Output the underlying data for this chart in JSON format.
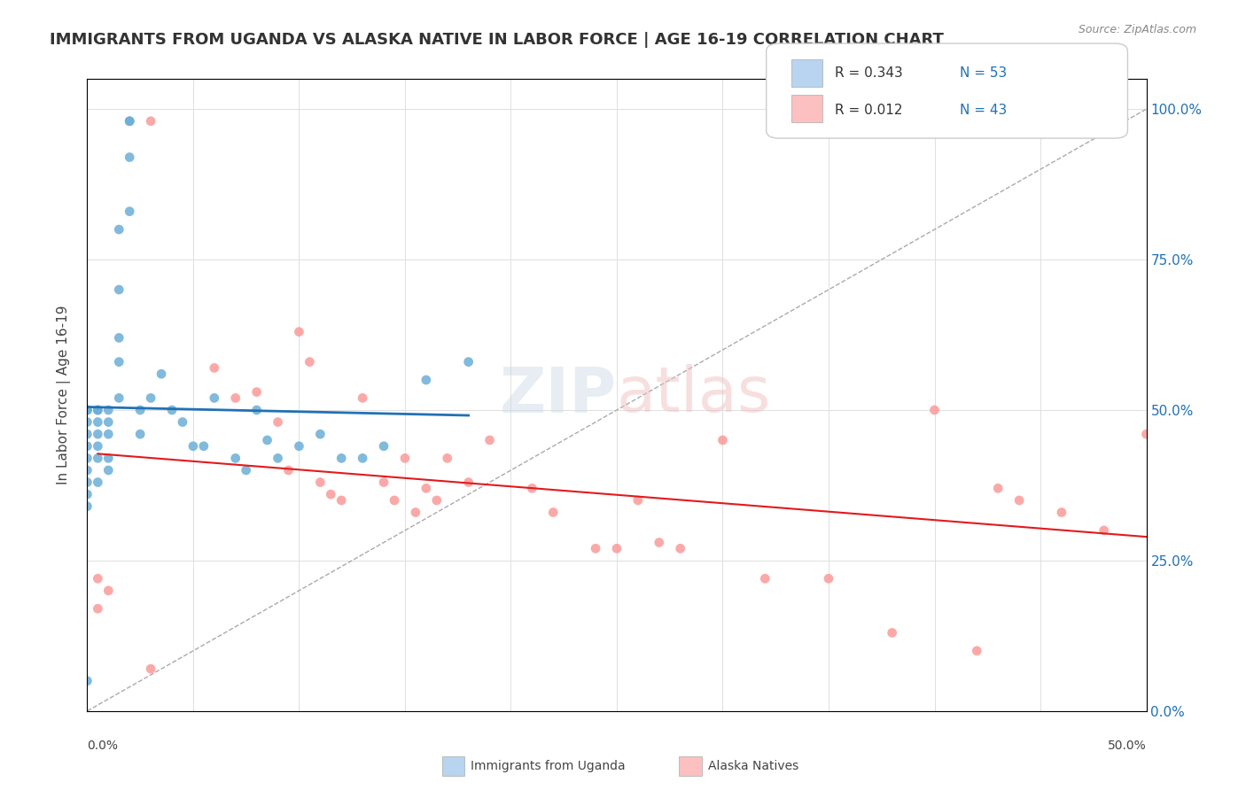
{
  "title": "IMMIGRANTS FROM UGANDA VS ALASKA NATIVE IN LABOR FORCE | AGE 16-19 CORRELATION CHART",
  "source": "Source: ZipAtlas.com",
  "ylabel": "In Labor Force | Age 16-19",
  "ylabel_right_ticks": [
    "0.0%",
    "25.0%",
    "50.0%",
    "75.0%",
    "100.0%"
  ],
  "ylabel_right_vals": [
    0.0,
    0.25,
    0.5,
    0.75,
    1.0
  ],
  "xmin": 0.0,
  "xmax": 0.5,
  "ymin": 0.0,
  "ymax": 1.05,
  "legend_r1": "R = 0.343",
  "legend_n1": "N = 53",
  "legend_r2": "R = 0.012",
  "legend_n2": "N = 43",
  "blue_color": "#6baed6",
  "pink_color": "#fb9a99",
  "blue_line_color": "#2171b5",
  "pink_line_color": "#e31a1c",
  "blue_scatter_x": [
    0.02,
    0.02,
    0.02,
    0.02,
    0.015,
    0.015,
    0.015,
    0.015,
    0.015,
    0.01,
    0.01,
    0.01,
    0.01,
    0.01,
    0.005,
    0.005,
    0.005,
    0.005,
    0.005,
    0.005,
    0.005,
    0.0,
    0.0,
    0.0,
    0.0,
    0.0,
    0.0,
    0.0,
    0.0,
    0.0,
    0.0,
    0.0,
    0.025,
    0.025,
    0.03,
    0.035,
    0.04,
    0.045,
    0.05,
    0.055,
    0.06,
    0.07,
    0.075,
    0.08,
    0.085,
    0.09,
    0.1,
    0.11,
    0.12,
    0.13,
    0.14,
    0.16,
    0.18
  ],
  "blue_scatter_y": [
    0.98,
    0.98,
    0.92,
    0.83,
    0.8,
    0.7,
    0.62,
    0.58,
    0.52,
    0.5,
    0.48,
    0.46,
    0.42,
    0.4,
    0.5,
    0.5,
    0.48,
    0.46,
    0.44,
    0.42,
    0.38,
    0.5,
    0.5,
    0.48,
    0.46,
    0.44,
    0.42,
    0.4,
    0.38,
    0.36,
    0.34,
    0.05,
    0.5,
    0.46,
    0.52,
    0.56,
    0.5,
    0.48,
    0.44,
    0.44,
    0.52,
    0.42,
    0.4,
    0.5,
    0.45,
    0.42,
    0.44,
    0.46,
    0.42,
    0.42,
    0.44,
    0.55,
    0.58
  ],
  "pink_scatter_x": [
    0.03,
    0.03,
    0.06,
    0.07,
    0.08,
    0.09,
    0.095,
    0.1,
    0.105,
    0.11,
    0.115,
    0.12,
    0.13,
    0.14,
    0.145,
    0.15,
    0.155,
    0.16,
    0.165,
    0.17,
    0.18,
    0.19,
    0.21,
    0.22,
    0.24,
    0.25,
    0.26,
    0.27,
    0.28,
    0.3,
    0.32,
    0.35,
    0.38,
    0.4,
    0.42,
    0.43,
    0.44,
    0.46,
    0.48,
    0.5,
    0.01,
    0.005,
    0.005
  ],
  "pink_scatter_y": [
    0.98,
    0.07,
    0.57,
    0.52,
    0.53,
    0.48,
    0.4,
    0.63,
    0.58,
    0.38,
    0.36,
    0.35,
    0.52,
    0.38,
    0.35,
    0.42,
    0.33,
    0.37,
    0.35,
    0.42,
    0.38,
    0.45,
    0.37,
    0.33,
    0.27,
    0.27,
    0.35,
    0.28,
    0.27,
    0.45,
    0.22,
    0.22,
    0.13,
    0.5,
    0.1,
    0.37,
    0.35,
    0.33,
    0.3,
    0.46,
    0.2,
    0.22,
    0.17
  ]
}
